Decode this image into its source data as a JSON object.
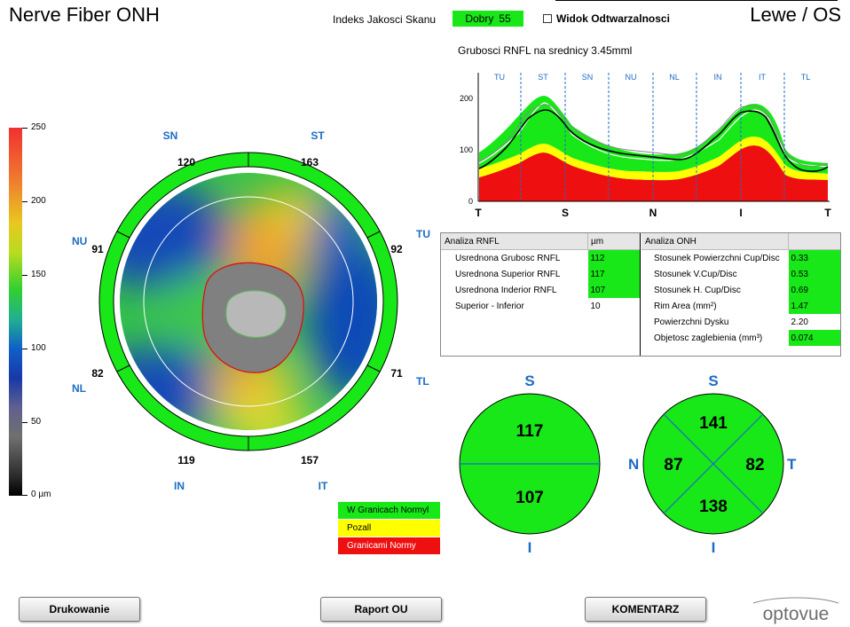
{
  "header": {
    "title": "Nerve Fiber ONH",
    "eye": "Lewe / OS",
    "scan_quality_label": "Indeks Jakosci Skanu",
    "scan_quality_text": "Dobry",
    "scan_quality_value": "55",
    "repro_label": "Widok Odtwarzalnosci"
  },
  "colorbar": {
    "ticks": [
      "250",
      "200",
      "150",
      "100",
      "50",
      "0 µm"
    ]
  },
  "polar_map": {
    "labels": {
      "sn": "SN",
      "st": "ST",
      "nu": "NU",
      "tu": "TU",
      "nl": "NL",
      "tl": "TL",
      "in": "IN",
      "it": "IT"
    },
    "sector_values": {
      "sn": "120",
      "st": "163",
      "nu": "91",
      "tu": "92",
      "nl": "82",
      "tl": "71",
      "in": "119",
      "it": "157"
    }
  },
  "tsnit": {
    "title": "Grubosci RNFL na srednicy 3.45mml",
    "sectors": [
      "TU",
      "ST",
      "SN",
      "NU",
      "NL",
      "IN",
      "IT",
      "TL"
    ],
    "bottom_labels": [
      "T",
      "S",
      "N",
      "I",
      "T"
    ],
    "y_ticks": [
      "200",
      "100",
      "0"
    ],
    "ylim": [
      0,
      250
    ]
  },
  "rnfl_table": {
    "header_label": "Analiza RNFL",
    "header_unit": "µm",
    "rows": [
      {
        "label": "Usrednona Grubosc RNFL",
        "value": "112"
      },
      {
        "label": "Usrednona Superior RNFL",
        "value": "117"
      },
      {
        "label": "Usrednona Inderior RNFL",
        "value": "107"
      },
      {
        "label": "Superior - Inferior",
        "value": "10"
      }
    ]
  },
  "onh_table": {
    "header_label": "Analiza ONH",
    "rows": [
      {
        "label": "Stosunek Powierzchni Cup/Disc",
        "value": "0.33"
      },
      {
        "label": "Stosunek V.Cup/Disc",
        "value": "0.53"
      },
      {
        "label": "Stosunek H. Cup/Disc",
        "value": "0.69"
      },
      {
        "label": "Rim Area (mm²)",
        "value": "1.47"
      },
      {
        "label": "Powierzchni Dysku",
        "value": "2.20"
      },
      {
        "label": "Objetosc zaglebienia (mm³)",
        "value": "0.074"
      }
    ]
  },
  "hemi_chart": {
    "s": "S",
    "i": "I",
    "superior": "117",
    "inferior": "107"
  },
  "quad_chart": {
    "s": "S",
    "i": "I",
    "n": "N",
    "t": "T",
    "superior": "141",
    "nasal": "87",
    "temporal": "82",
    "inferior": "138"
  },
  "legend": {
    "normal": "W Granicach Normyl",
    "borderline": "Pozall",
    "outside": "Granicami Normy"
  },
  "buttons": {
    "print": "Drukowanie",
    "report": "Raport OU",
    "comment": "KOMENTARZ"
  },
  "logo": "optovue",
  "colors": {
    "green": "#18e818",
    "yellow": "#ffff00",
    "red": "#ee1010",
    "label_blue": "#1c6cc4"
  }
}
